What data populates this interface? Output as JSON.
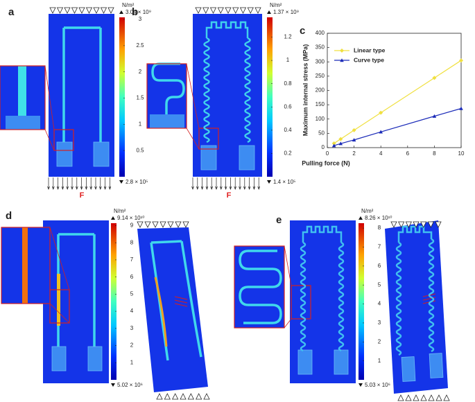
{
  "panels": [
    {
      "label": "a",
      "force_label": "F",
      "colorbar": {
        "unit": "N/m²",
        "max_label": "3.04 × 10⁹",
        "min_label": "2.8 × 10⁵",
        "lim": [
          0.00028,
          3.04
        ],
        "ticks": [
          3,
          2.5,
          2,
          1.5,
          1,
          0.5
        ]
      }
    },
    {
      "label": "b",
      "force_label": "F",
      "colorbar": {
        "unit": "N/m²",
        "max_label": "1.37 × 10⁹",
        "min_label": "1.4 × 10⁵",
        "lim": [
          0.00014,
          1.37
        ],
        "ticks": [
          1.2,
          1,
          0.8,
          0.6,
          0.4,
          0.2
        ]
      }
    },
    {
      "label": "c"
    },
    {
      "label": "d",
      "colorbar": {
        "unit": "N/m²",
        "max_label": "9.14 × 10¹⁰",
        "min_label": "5.02 × 10⁶",
        "lim": [
          0.000502,
          9.14
        ],
        "ticks": [
          9,
          8,
          7,
          6,
          5,
          4,
          3,
          2,
          1
        ]
      }
    },
    {
      "label": "e",
      "colorbar": {
        "unit": "N/m²",
        "max_label": "8.26 × 10¹⁰",
        "min_label": "5.03 × 10⁶",
        "lim": [
          0.000503,
          8.26
        ],
        "ticks": [
          8,
          7,
          6,
          5,
          4,
          3,
          2,
          1
        ]
      }
    }
  ],
  "chart_data": {
    "type": "line",
    "x_label": "Pulling force (N)",
    "y_label": "Maximum internal stress (MPa)",
    "xlim": [
      0,
      10
    ],
    "xticks": [
      0,
      2,
      4,
      6,
      8,
      10
    ],
    "ylim": [
      0,
      400
    ],
    "yticks": [
      0,
      50,
      100,
      150,
      200,
      250,
      300,
      350,
      400
    ],
    "legend": "upper-left",
    "series": [
      {
        "name": "Linear type",
        "color": "#f0e040",
        "marker": "diamond",
        "x": [
          0.5,
          1,
          2,
          4,
          8,
          10
        ],
        "values": [
          15,
          30,
          61,
          122,
          244,
          305
        ]
      },
      {
        "name": "Curve type",
        "color": "#1a2ab8",
        "marker": "triangle",
        "x": [
          0.5,
          1,
          2,
          4,
          8,
          10
        ],
        "values": [
          7,
          14,
          27,
          55,
          110,
          137
        ]
      }
    ]
  }
}
